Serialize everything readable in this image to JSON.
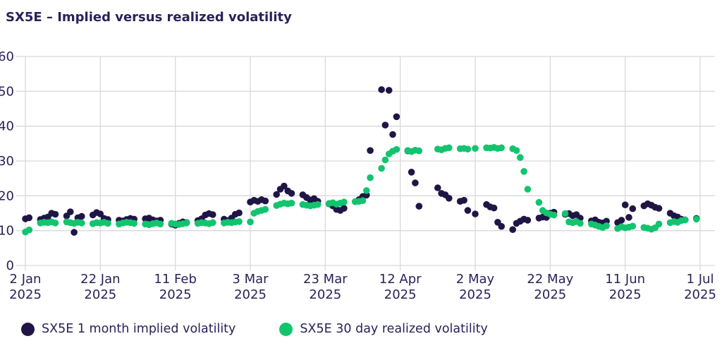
{
  "title": "SX5E – Implied versus realized volatility",
  "colors": {
    "implied": "#211546",
    "realized": "#12c46e",
    "text": "#2a2159",
    "grid": "#d9d9d9",
    "background": "#ffffff"
  },
  "legend": {
    "implied_label": "SX5E 1 month implied volatility",
    "realized_label": "SX5E 30 day realized volatility"
  },
  "chart_data": {
    "type": "scatter",
    "title": "SX5E – Implied versus realized volatility",
    "xlabel": "",
    "ylabel": "",
    "grid": true,
    "legend_position": "bottom",
    "y_axis": {
      "min": 0,
      "max": 60,
      "ticks": [
        0,
        10,
        20,
        30,
        40,
        50,
        60
      ]
    },
    "x_axis": {
      "tick_dates": [
        "2025-01-02",
        "2025-01-22",
        "2025-02-11",
        "2025-03-03",
        "2025-03-23",
        "2025-04-12",
        "2025-05-02",
        "2025-05-22",
        "2025-06-11",
        "2025-07-01"
      ],
      "tick_labels": [
        [
          "2 Jan",
          "2025"
        ],
        [
          "22 Jan",
          "2025"
        ],
        [
          "11 Feb",
          "2025"
        ],
        [
          "3 Mar",
          "2025"
        ],
        [
          "23 Mar",
          "2025"
        ],
        [
          "12 Apr",
          "2025"
        ],
        [
          "2 May",
          "2025"
        ],
        [
          "22 May",
          "2025"
        ],
        [
          "11 Jun",
          "2025"
        ],
        [
          "1 Jul",
          "2025"
        ]
      ]
    },
    "dates": [
      "2025-01-02",
      "2025-01-03",
      "2025-01-06",
      "2025-01-07",
      "2025-01-08",
      "2025-01-09",
      "2025-01-10",
      "2025-01-13",
      "2025-01-14",
      "2025-01-15",
      "2025-01-16",
      "2025-01-17",
      "2025-01-20",
      "2025-01-21",
      "2025-01-22",
      "2025-01-23",
      "2025-01-24",
      "2025-01-27",
      "2025-01-28",
      "2025-01-29",
      "2025-01-30",
      "2025-01-31",
      "2025-02-03",
      "2025-02-04",
      "2025-02-05",
      "2025-02-06",
      "2025-02-07",
      "2025-02-10",
      "2025-02-11",
      "2025-02-12",
      "2025-02-13",
      "2025-02-14",
      "2025-02-17",
      "2025-02-18",
      "2025-02-19",
      "2025-02-20",
      "2025-02-21",
      "2025-02-24",
      "2025-02-25",
      "2025-02-26",
      "2025-02-27",
      "2025-02-28",
      "2025-03-03",
      "2025-03-04",
      "2025-03-05",
      "2025-03-06",
      "2025-03-07",
      "2025-03-10",
      "2025-03-11",
      "2025-03-12",
      "2025-03-13",
      "2025-03-14",
      "2025-03-17",
      "2025-03-18",
      "2025-03-19",
      "2025-03-20",
      "2025-03-21",
      "2025-03-24",
      "2025-03-25",
      "2025-03-26",
      "2025-03-27",
      "2025-03-28",
      "2025-03-31",
      "2025-04-01",
      "2025-04-02",
      "2025-04-03",
      "2025-04-04",
      "2025-04-07",
      "2025-04-08",
      "2025-04-09",
      "2025-04-10",
      "2025-04-11",
      "2025-04-14",
      "2025-04-15",
      "2025-04-16",
      "2025-04-17",
      "2025-04-22",
      "2025-04-23",
      "2025-04-24",
      "2025-04-25",
      "2025-04-28",
      "2025-04-29",
      "2025-04-30",
      "2025-05-02",
      "2025-05-05",
      "2025-05-06",
      "2025-05-07",
      "2025-05-08",
      "2025-05-09",
      "2025-05-12",
      "2025-05-13",
      "2025-05-14",
      "2025-05-15",
      "2025-05-16",
      "2025-05-19",
      "2025-05-20",
      "2025-05-21",
      "2025-05-22",
      "2025-05-23",
      "2025-05-26",
      "2025-05-27",
      "2025-05-28",
      "2025-05-29",
      "2025-05-30",
      "2025-06-02",
      "2025-06-03",
      "2025-06-04",
      "2025-06-05",
      "2025-06-06",
      "2025-06-09",
      "2025-06-10",
      "2025-06-11",
      "2025-06-12",
      "2025-06-13",
      "2025-06-16",
      "2025-06-17",
      "2025-06-18",
      "2025-06-19",
      "2025-06-20",
      "2025-06-23",
      "2025-06-24",
      "2025-06-25",
      "2025-06-26",
      "2025-06-27",
      "2025-06-30",
      "2025-07-01"
    ],
    "series": [
      {
        "name": "SX5E 1 month implied volatility",
        "color_key": "implied",
        "values": [
          13.4,
          13.7,
          13.2,
          13.6,
          13.9,
          15.0,
          14.7,
          14.2,
          15.4,
          9.5,
          13.7,
          14.1,
          14.5,
          15.2,
          14.8,
          13.5,
          13.2,
          13.0,
          12.8,
          13.2,
          13.5,
          13.3,
          13.4,
          13.6,
          13.1,
          12.8,
          13.0,
          11.9,
          11.6,
          12.1,
          12.5,
          12.3,
          12.9,
          13.4,
          14.5,
          14.9,
          14.6,
          13.3,
          12.9,
          13.6,
          14.7,
          15.1,
          18.2,
          18.7,
          18.4,
          18.9,
          18.5,
          20.4,
          21.9,
          22.8,
          21.4,
          20.7,
          20.3,
          19.5,
          18.8,
          19.2,
          18.4,
          17.7,
          17.1,
          16.1,
          15.8,
          16.4,
          18.3,
          18.9,
          19.8,
          20.2,
          33.0,
          50.5,
          40.3,
          50.3,
          37.6,
          42.7,
          32.9,
          26.8,
          23.7,
          17.0,
          22.3,
          20.7,
          20.3,
          19.3,
          18.4,
          18.7,
          15.8,
          14.8,
          17.5,
          16.8,
          16.5,
          12.4,
          11.2,
          10.3,
          12.1,
          12.7,
          13.3,
          13.0,
          13.6,
          13.9,
          13.8,
          15.0,
          15.3,
          14.7,
          14.9,
          14.3,
          14.6,
          13.6,
          12.8,
          13.1,
          12.4,
          12.2,
          12.7,
          12.3,
          13.0,
          17.4,
          13.8,
          16.3,
          17.1,
          17.7,
          17.3,
          16.7,
          16.4,
          15.0,
          14.3,
          13.9,
          13.3,
          13.1,
          13.5
        ]
      },
      {
        "name": "SX5E 30 day realized volatility",
        "color_key": "realized",
        "values": [
          9.6,
          10.2,
          12.2,
          12.4,
          12.3,
          12.5,
          12.2,
          12.5,
          12.3,
          12.1,
          12.4,
          12.2,
          12.0,
          12.3,
          12.2,
          12.4,
          12.1,
          11.9,
          12.2,
          12.4,
          12.3,
          12.1,
          11.9,
          11.7,
          12.0,
          12.2,
          11.9,
          12.1,
          11.9,
          11.8,
          12.0,
          12.2,
          12.1,
          12.3,
          12.2,
          12.0,
          12.3,
          12.2,
          12.4,
          12.3,
          12.5,
          12.6,
          12.5,
          15.0,
          15.5,
          15.8,
          16.1,
          17.2,
          17.6,
          17.9,
          17.7,
          17.9,
          17.5,
          17.3,
          17.1,
          17.3,
          17.5,
          17.8,
          18.0,
          17.6,
          17.9,
          18.2,
          18.3,
          18.4,
          18.6,
          21.5,
          25.2,
          27.9,
          30.3,
          32.0,
          32.8,
          33.3,
          33.0,
          32.7,
          33.1,
          32.9,
          33.4,
          33.2,
          33.6,
          33.8,
          33.5,
          33.6,
          33.4,
          33.6,
          33.8,
          33.7,
          33.9,
          33.6,
          33.8,
          33.5,
          33.0,
          31.0,
          27.0,
          21.9,
          18.1,
          15.8,
          15.1,
          14.7,
          14.5,
          14.9,
          12.5,
          12.3,
          12.6,
          12.1,
          11.9,
          11.6,
          11.2,
          10.9,
          11.4,
          10.6,
          11.1,
          10.8,
          11.0,
          11.3,
          10.9,
          10.7,
          10.4,
          10.8,
          11.9,
          12.3,
          12.6,
          12.4,
          12.9,
          13.1,
          13.3
        ]
      }
    ]
  }
}
